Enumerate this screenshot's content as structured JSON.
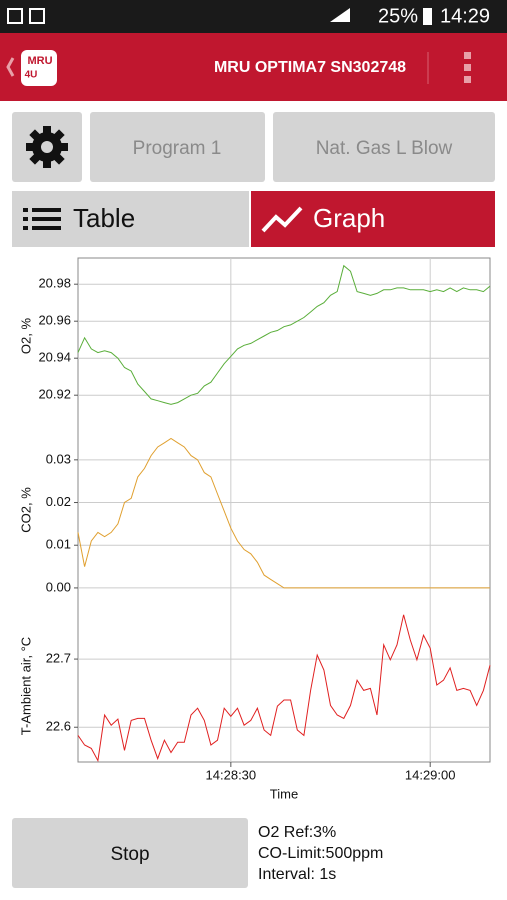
{
  "status_bar": {
    "battery": "25%",
    "time": "14:29"
  },
  "app_bar": {
    "logo": {
      "name": "MRU",
      "tag": "4U"
    },
    "title": "MRU OPTIMA7 SN302748"
  },
  "buttons": {
    "program": "Program 1",
    "mode": "Nat. Gas L Blow"
  },
  "tabs": {
    "table": "Table",
    "graph": "Graph"
  },
  "chart_data": {
    "type": "line",
    "xlabel": "Time",
    "x": [
      "14:28:07",
      "14:28:08",
      "14:28:09",
      "14:28:10",
      "14:28:11",
      "14:28:12",
      "14:28:13",
      "14:28:14",
      "14:28:15",
      "14:28:16",
      "14:28:17",
      "14:28:18",
      "14:28:19",
      "14:28:20",
      "14:28:21",
      "14:28:22",
      "14:28:23",
      "14:28:24",
      "14:28:25",
      "14:28:26",
      "14:28:27",
      "14:28:28",
      "14:28:29",
      "14:28:30",
      "14:28:31",
      "14:28:32",
      "14:28:33",
      "14:28:34",
      "14:28:35",
      "14:28:36",
      "14:28:37",
      "14:28:38",
      "14:28:39",
      "14:28:40",
      "14:28:41",
      "14:28:42",
      "14:28:43",
      "14:28:44",
      "14:28:45",
      "14:28:46",
      "14:28:47",
      "14:28:48",
      "14:28:49",
      "14:28:50",
      "14:28:51",
      "14:28:52",
      "14:28:53",
      "14:28:54",
      "14:28:55",
      "14:28:56",
      "14:28:57",
      "14:28:58",
      "14:28:59",
      "14:29:00",
      "14:29:01",
      "14:29:02",
      "14:29:03",
      "14:29:04",
      "14:29:05",
      "14:29:06",
      "14:29:07",
      "14:29:08",
      "14:29:09"
    ],
    "xlim": [
      "14:28:07",
      "14:29:09"
    ],
    "xticks": [
      "14:28:30",
      "14:29:00"
    ],
    "grid": true,
    "panels": [
      {
        "ylabel": "O2, %",
        "ylim": [
          20.912,
          20.992
        ],
        "yticks": [
          20.92,
          20.94,
          20.96,
          20.98
        ],
        "series": [
          {
            "color": "#5aae3a",
            "values": [
              20.943,
              20.951,
              20.945,
              20.943,
              20.944,
              20.943,
              20.94,
              20.935,
              20.933,
              20.926,
              20.922,
              20.918,
              20.917,
              20.916,
              20.915,
              20.916,
              20.918,
              20.92,
              20.921,
              20.925,
              20.927,
              20.932,
              20.937,
              20.941,
              20.945,
              20.947,
              20.948,
              20.95,
              20.952,
              20.954,
              20.955,
              20.957,
              20.958,
              20.96,
              20.962,
              20.965,
              20.968,
              20.97,
              20.974,
              20.976,
              20.99,
              20.987,
              20.976,
              20.975,
              20.974,
              20.975,
              20.977,
              20.977,
              20.978,
              20.978,
              20.977,
              20.977,
              20.977,
              20.976,
              20.977,
              20.976,
              20.978,
              20.976,
              20.978,
              20.977,
              20.977,
              20.976,
              20.979
            ]
          }
        ]
      },
      {
        "ylabel": "CO2, %",
        "ylim": [
          -0.004,
          0.0405
        ],
        "yticks": [
          {
            "value": 0,
            "label": "0.00"
          },
          0.01,
          0.02,
          0.03
        ],
        "series": [
          {
            "color": "#e0a030",
            "values": [
              0.013,
              0.005,
              0.011,
              0.013,
              0.012,
              0.013,
              0.015,
              0.02,
              0.021,
              0.026,
              0.028,
              0.031,
              0.033,
              0.034,
              0.035,
              0.034,
              0.033,
              0.031,
              0.03,
              0.027,
              0.026,
              0.022,
              0.018,
              0.014,
              0.011,
              0.009,
              0.008,
              0.006,
              0.003,
              0.002,
              0.001,
              0,
              0,
              0,
              0,
              0,
              0,
              0,
              0,
              0,
              0,
              0,
              0,
              0,
              0,
              0,
              0,
              0,
              0,
              0,
              0,
              0,
              0,
              0,
              0,
              0,
              0,
              0,
              0,
              0,
              0,
              0,
              0
            ]
          }
        ]
      },
      {
        "ylabel": "T-Ambient air, °C",
        "ylim": [
          22.549,
          22.772
        ],
        "yticks": [
          22.6,
          22.7
        ],
        "series": [
          {
            "color": "#e02020",
            "values": [
              22.588,
              22.574,
              22.569,
              22.551,
              22.618,
              22.603,
              22.612,
              22.566,
              22.61,
              22.613,
              22.613,
              22.581,
              22.554,
              22.581,
              22.563,
              22.578,
              22.578,
              22.618,
              22.628,
              22.61,
              22.574,
              22.581,
              22.628,
              22.616,
              22.628,
              22.603,
              22.61,
              22.628,
              22.596,
              22.588,
              22.631,
              22.64,
              22.64,
              22.596,
              22.588,
              22.654,
              22.706,
              22.684,
              22.632,
              22.618,
              22.613,
              22.632,
              22.669,
              22.654,
              22.657,
              22.618,
              22.721,
              22.699,
              22.721,
              22.765,
              22.728,
              22.699,
              22.735,
              22.716,
              22.662,
              22.669,
              22.687,
              22.654,
              22.657,
              22.654,
              22.632,
              22.654,
              22.691
            ]
          }
        ]
      }
    ]
  },
  "footer": {
    "stop": "Stop",
    "info": [
      "O2 Ref:3%",
      "CO-Limit:500ppm",
      "Interval: 1s"
    ]
  }
}
